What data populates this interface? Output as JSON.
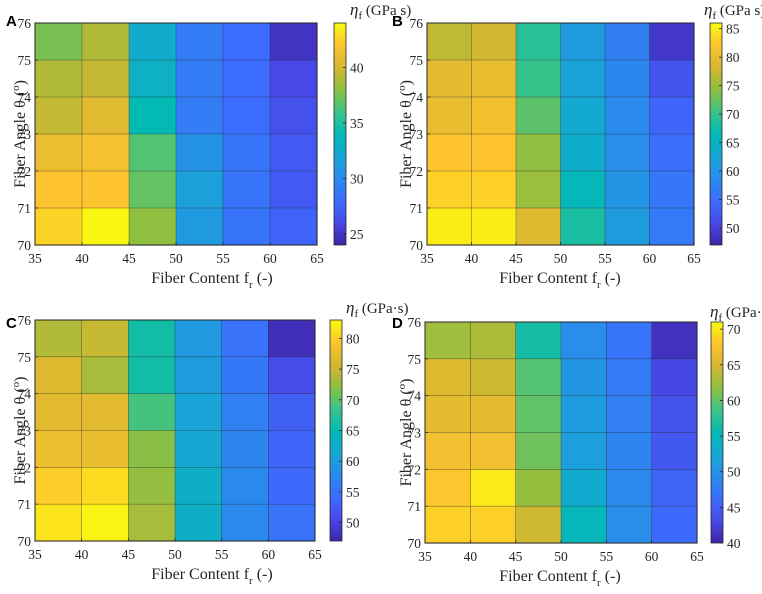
{
  "chart_data": [
    {
      "type": "heatmap",
      "panel_label": "A",
      "x": [
        35,
        40,
        45,
        50,
        55,
        60
      ],
      "y": [
        75,
        74,
        73,
        72,
        71,
        70
      ],
      "xticks": [
        "35",
        "40",
        "45",
        "50",
        "55",
        "60",
        "65"
      ],
      "yticks": [
        "76",
        "75",
        "74",
        "73",
        "72",
        "71",
        "70"
      ],
      "xlabel": "Fiber Content f",
      "xlabel_sub": "r",
      "xlabel_suffix": " (-)",
      "ylabel": "Fiber Angle θ (",
      "ylabel_sup": "o",
      "ylabel_suffix": ")",
      "colorbar_label": "η",
      "colorbar_sub": "f",
      "colorbar_unit": " (GPa s)",
      "clim": [
        24,
        44
      ],
      "colorbar_ticks": [
        "25",
        "30",
        "35",
        "40"
      ],
      "colorbar_tick_values": [
        25,
        30,
        35,
        40
      ],
      "values": [
        [
          37.5,
          39.0,
          32.5,
          29.0,
          28.0,
          24.8
        ],
        [
          39.0,
          39.5,
          33.0,
          29.0,
          28.0,
          26.0
        ],
        [
          39.5,
          40.5,
          34.0,
          29.0,
          28.0,
          26.5
        ],
        [
          41.0,
          41.5,
          36.5,
          30.5,
          28.5,
          27.0
        ],
        [
          42.0,
          42.0,
          37.0,
          31.5,
          28.5,
          27.0
        ],
        [
          42.5,
          43.8,
          38.0,
          31.0,
          28.5,
          27.5
        ]
      ]
    },
    {
      "type": "heatmap",
      "panel_label": "B",
      "x": [
        35,
        40,
        45,
        50,
        55,
        60
      ],
      "y": [
        75,
        74,
        73,
        72,
        71,
        70
      ],
      "xticks": [
        "35",
        "40",
        "45",
        "50",
        "55",
        "60",
        "65"
      ],
      "yticks": [
        "76",
        "75",
        "74",
        "73",
        "72",
        "71",
        "70"
      ],
      "xlabel": "Fiber Content f",
      "xlabel_sub": "r",
      "xlabel_suffix": " (-)",
      "ylabel": "Fiber Angle θ (",
      "ylabel_sup": "o",
      "ylabel_suffix": ")",
      "colorbar_label": "η",
      "colorbar_sub": "f",
      "colorbar_unit": " (GPa s)",
      "clim": [
        47,
        86
      ],
      "colorbar_ticks": [
        "50",
        "55",
        "60",
        "65",
        "70",
        "75",
        "80",
        "85"
      ],
      "colorbar_tick_values": [
        50,
        55,
        60,
        65,
        70,
        75,
        80,
        85
      ],
      "values": [
        [
          77.0,
          78.0,
          69.0,
          61.0,
          57.0,
          49.0
        ],
        [
          79.5,
          80.0,
          70.0,
          62.0,
          58.0,
          52.0
        ],
        [
          80.0,
          81.0,
          72.0,
          63.0,
          58.5,
          54.0
        ],
        [
          82.0,
          82.0,
          74.5,
          64.0,
          59.0,
          55.0
        ],
        [
          83.0,
          83.0,
          75.0,
          66.0,
          60.0,
          56.0
        ],
        [
          85.0,
          85.0,
          79.0,
          68.0,
          61.0,
          56.5
        ]
      ]
    },
    {
      "type": "heatmap",
      "panel_label": "C",
      "x": [
        35,
        40,
        45,
        50,
        55,
        60
      ],
      "y": [
        75,
        74,
        73,
        72,
        71,
        70
      ],
      "xticks": [
        "35",
        "40",
        "45",
        "50",
        "55",
        "60",
        "65"
      ],
      "yticks": [
        "76",
        "75",
        "74",
        "73",
        "72",
        "71",
        "70"
      ],
      "xlabel": "Fiber Content f",
      "xlabel_sub": "r",
      "xlabel_suffix": " (-)",
      "ylabel": "Fiber Angle θ (",
      "ylabel_sup": "o",
      "ylabel_suffix": ")",
      "colorbar_label": "η",
      "colorbar_sub": "f",
      "colorbar_unit": " (GPa·s)",
      "clim": [
        47,
        83
      ],
      "colorbar_ticks": [
        "50",
        "55",
        "60",
        "65",
        "70",
        "75",
        "80"
      ],
      "colorbar_tick_values": [
        50,
        55,
        60,
        65,
        70,
        75,
        80
      ],
      "values": [
        [
          74.0,
          75.0,
          66.0,
          59.5,
          55.0,
          48.0
        ],
        [
          76.5,
          73.5,
          66.0,
          60.0,
          55.5,
          51.0
        ],
        [
          77.0,
          77.0,
          69.0,
          61.0,
          56.5,
          53.0
        ],
        [
          78.0,
          77.5,
          72.0,
          61.5,
          57.0,
          53.5
        ],
        [
          80.0,
          81.0,
          72.5,
          63.0,
          57.5,
          54.0
        ],
        [
          81.5,
          82.5,
          73.5,
          63.0,
          57.5,
          55.0
        ]
      ]
    },
    {
      "type": "heatmap",
      "panel_label": "D",
      "x": [
        35,
        40,
        45,
        50,
        55,
        60
      ],
      "y": [
        75,
        74,
        73,
        72,
        71,
        70
      ],
      "xticks": [
        "35",
        "40",
        "45",
        "50",
        "55",
        "60",
        "65"
      ],
      "yticks": [
        "76",
        "75",
        "74",
        "73",
        "72",
        "71",
        "70"
      ],
      "xlabel": "Fiber Content f",
      "xlabel_sub": "r",
      "xlabel_suffix": " (-)",
      "ylabel": "Fiber Angle θ (",
      "ylabel_sup": "o",
      "ylabel_suffix": ")",
      "colorbar_label": "η",
      "colorbar_sub": "f",
      "colorbar_unit": " (GPa·s)",
      "clim": [
        40,
        71
      ],
      "colorbar_ticks": [
        "40",
        "45",
        "50",
        "55",
        "60",
        "65",
        "70"
      ],
      "colorbar_tick_values": [
        40,
        45,
        50,
        55,
        60,
        65,
        70
      ],
      "values": [
        [
          62.5,
          63.0,
          56.5,
          49.5,
          47.0,
          41.0
        ],
        [
          65.5,
          64.5,
          59.5,
          50.5,
          47.5,
          43.0
        ],
        [
          66.0,
          66.0,
          60.0,
          51.0,
          48.0,
          44.0
        ],
        [
          67.0,
          67.0,
          60.5,
          51.5,
          48.5,
          44.5
        ],
        [
          68.0,
          70.0,
          62.0,
          53.0,
          49.0,
          45.5
        ],
        [
          68.5,
          68.5,
          64.5,
          55.0,
          49.5,
          46.0
        ]
      ]
    }
  ]
}
